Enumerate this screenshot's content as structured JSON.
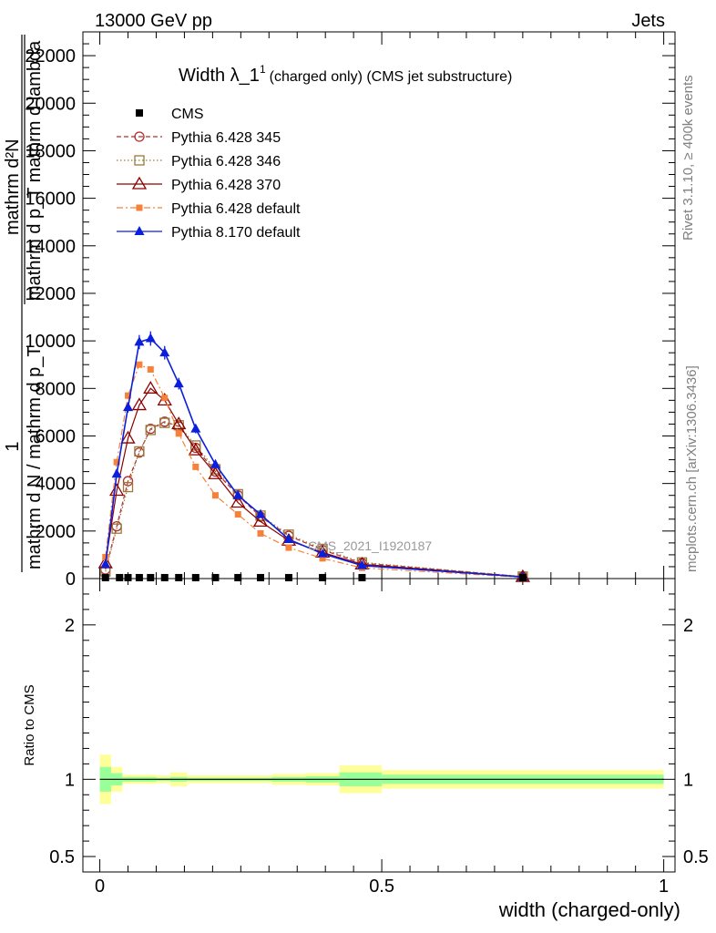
{
  "header": {
    "left": "13000 GeV pp",
    "right": "Jets"
  },
  "side_labels": {
    "rivet": "Rivet 3.1.10, ≥ 400k events",
    "mcplots": "mcplots.cern.ch [arXiv:1306.3436]"
  },
  "chart_data": [
    {
      "type": "line",
      "title_main": "Width λ_1",
      "title_sup": "1",
      "title_rest": "(charged only) (CMS jet substructure)",
      "ylabel_num": "1",
      "ylabel_denom": "mathrm d N / mathrm d p_T",
      "ylabel_num2_top": "mathrm d²N",
      "ylabel_num2_bottom": "mathrm d p_T mathrm d lambda",
      "watermark": "CMS_2021_I1920187",
      "ylim": [
        0,
        23000
      ],
      "xlim": [
        -0.03,
        1.02
      ],
      "y_ticks": [
        {
          "value": 0,
          "label": "0"
        },
        {
          "value": 2000,
          "label": "2000"
        },
        {
          "value": 4000,
          "label": "4000"
        },
        {
          "value": 6000,
          "label": "6000"
        },
        {
          "value": 8000,
          "label": "8000"
        },
        {
          "value": 10000,
          "label": "10000"
        },
        {
          "value": 12000,
          "label": "12000"
        },
        {
          "value": 14000,
          "label": "14000"
        },
        {
          "value": 16000,
          "label": "16000"
        },
        {
          "value": 18000,
          "label": "18000"
        },
        {
          "value": 20000,
          "label": "20000"
        },
        {
          "value": 22000,
          "label": "22000"
        }
      ],
      "series": [
        {
          "name": "CMS",
          "color": "#000000",
          "marker": "square-filled",
          "line": "none",
          "x": [
            0.01,
            0.035,
            0.05,
            0.07,
            0.09,
            0.115,
            0.14,
            0.17,
            0.205,
            0.245,
            0.285,
            0.335,
            0.395,
            0.465,
            0.75
          ],
          "y": [
            40,
            40,
            40,
            40,
            40,
            40,
            40,
            40,
            40,
            40,
            40,
            40,
            40,
            40,
            40
          ]
        },
        {
          "name": "Pythia 6.428 345",
          "color": "#b03030",
          "marker": "circle-open",
          "line": "dashed",
          "x": [
            0.01,
            0.03,
            0.05,
            0.07,
            0.09,
            0.115,
            0.14,
            0.17,
            0.205,
            0.245,
            0.285,
            0.335,
            0.395,
            0.465,
            0.75
          ],
          "y": [
            380,
            2200,
            4100,
            5300,
            6300,
            6600,
            6400,
            5500,
            4500,
            3500,
            2600,
            1800,
            1200,
            650,
            80
          ]
        },
        {
          "name": "Pythia 6.428 346",
          "color": "#9a7a3a",
          "marker": "square-open",
          "line": "dotted",
          "x": [
            0.01,
            0.03,
            0.05,
            0.07,
            0.09,
            0.115,
            0.14,
            0.17,
            0.205,
            0.245,
            0.285,
            0.335,
            0.395,
            0.465,
            0.75
          ],
          "y": [
            300,
            2100,
            3850,
            5350,
            6250,
            6550,
            6450,
            5600,
            4600,
            3550,
            2650,
            1850,
            1250,
            680,
            85
          ]
        },
        {
          "name": "Pythia 6.428 370",
          "color": "#8b0000",
          "marker": "triangle-open",
          "line": "solid",
          "x": [
            0.01,
            0.03,
            0.05,
            0.07,
            0.09,
            0.115,
            0.14,
            0.17,
            0.205,
            0.245,
            0.285,
            0.335,
            0.395,
            0.465,
            0.75
          ],
          "y": [
            650,
            3700,
            5900,
            7300,
            8000,
            7500,
            6500,
            5400,
            4400,
            3200,
            2400,
            1600,
            1100,
            600,
            75
          ]
        },
        {
          "name": "Pythia 6.428 default",
          "color": "#f5813a",
          "marker": "square-filled-small",
          "line": "dashdot",
          "x": [
            0.01,
            0.03,
            0.05,
            0.07,
            0.09,
            0.115,
            0.14,
            0.17,
            0.205,
            0.245,
            0.285,
            0.335,
            0.395,
            0.465,
            0.75
          ],
          "y": [
            900,
            4900,
            7700,
            9000,
            8800,
            7600,
            6100,
            4700,
            3500,
            2700,
            1900,
            1300,
            850,
            450,
            55
          ]
        },
        {
          "name": "Pythia 8.170 default",
          "color": "#0a1edc",
          "marker": "triangle-filled",
          "line": "solid",
          "x": [
            0.01,
            0.03,
            0.05,
            0.07,
            0.09,
            0.115,
            0.14,
            0.17,
            0.205,
            0.245,
            0.285,
            0.335,
            0.395,
            0.465,
            0.75
          ],
          "y": [
            600,
            4400,
            7200,
            9950,
            10100,
            9500,
            8200,
            6300,
            4800,
            3500,
            2700,
            1650,
            1050,
            550,
            70
          ]
        }
      ]
    },
    {
      "type": "area",
      "ylabel": "Ratio to CMS",
      "ylim": [
        0.4,
        2.3
      ],
      "xlim": [
        -0.03,
        1.02
      ],
      "reference": 1,
      "y_ticks": [
        {
          "value": 0.5,
          "label": "0.5"
        },
        {
          "value": 1,
          "label": "1"
        },
        {
          "value": 2,
          "label": "2"
        }
      ],
      "x_ticks": [
        {
          "value": 0,
          "label": "0"
        },
        {
          "value": 0.5,
          "label": "0.5"
        },
        {
          "value": 1,
          "label": "1"
        }
      ],
      "xlabel": "width (charged-only)",
      "band_colors": {
        "outer": "#ffff99",
        "inner": "#99ff99",
        "line": "#000000"
      },
      "bands": [
        {
          "x0": 0.0,
          "x1": 0.02,
          "inner": [
            0.92,
            1.08
          ],
          "outer": [
            0.84,
            1.16
          ]
        },
        {
          "x0": 0.02,
          "x1": 0.04,
          "inner": [
            0.96,
            1.04
          ],
          "outer": [
            0.92,
            1.08
          ]
        },
        {
          "x0": 0.04,
          "x1": 0.06,
          "inner": [
            0.985,
            1.015
          ],
          "outer": [
            0.97,
            1.03
          ]
        },
        {
          "x0": 0.06,
          "x1": 0.08,
          "inner": [
            0.985,
            1.015
          ],
          "outer": [
            0.97,
            1.03
          ]
        },
        {
          "x0": 0.08,
          "x1": 0.1,
          "inner": [
            0.985,
            1.015
          ],
          "outer": [
            0.97,
            1.03
          ]
        },
        {
          "x0": 0.1,
          "x1": 0.125,
          "inner": [
            0.99,
            1.01
          ],
          "outer": [
            0.975,
            1.025
          ]
        },
        {
          "x0": 0.125,
          "x1": 0.155,
          "inner": [
            0.985,
            1.015
          ],
          "outer": [
            0.955,
            1.045
          ]
        },
        {
          "x0": 0.155,
          "x1": 0.185,
          "inner": [
            0.99,
            1.01
          ],
          "outer": [
            0.975,
            1.025
          ]
        },
        {
          "x0": 0.185,
          "x1": 0.225,
          "inner": [
            0.99,
            1.01
          ],
          "outer": [
            0.975,
            1.025
          ]
        },
        {
          "x0": 0.225,
          "x1": 0.265,
          "inner": [
            0.99,
            1.01
          ],
          "outer": [
            0.975,
            1.025
          ]
        },
        {
          "x0": 0.265,
          "x1": 0.305,
          "inner": [
            0.99,
            1.01
          ],
          "outer": [
            0.975,
            1.025
          ]
        },
        {
          "x0": 0.305,
          "x1": 0.365,
          "inner": [
            0.985,
            1.015
          ],
          "outer": [
            0.965,
            1.035
          ]
        },
        {
          "x0": 0.365,
          "x1": 0.425,
          "inner": [
            0.98,
            1.02
          ],
          "outer": [
            0.96,
            1.04
          ]
        },
        {
          "x0": 0.425,
          "x1": 0.5,
          "inner": [
            0.955,
            1.045
          ],
          "outer": [
            0.91,
            1.09
          ]
        },
        {
          "x0": 0.5,
          "x1": 1.0,
          "inner": [
            0.97,
            1.03
          ],
          "outer": [
            0.94,
            1.06
          ]
        }
      ]
    }
  ]
}
